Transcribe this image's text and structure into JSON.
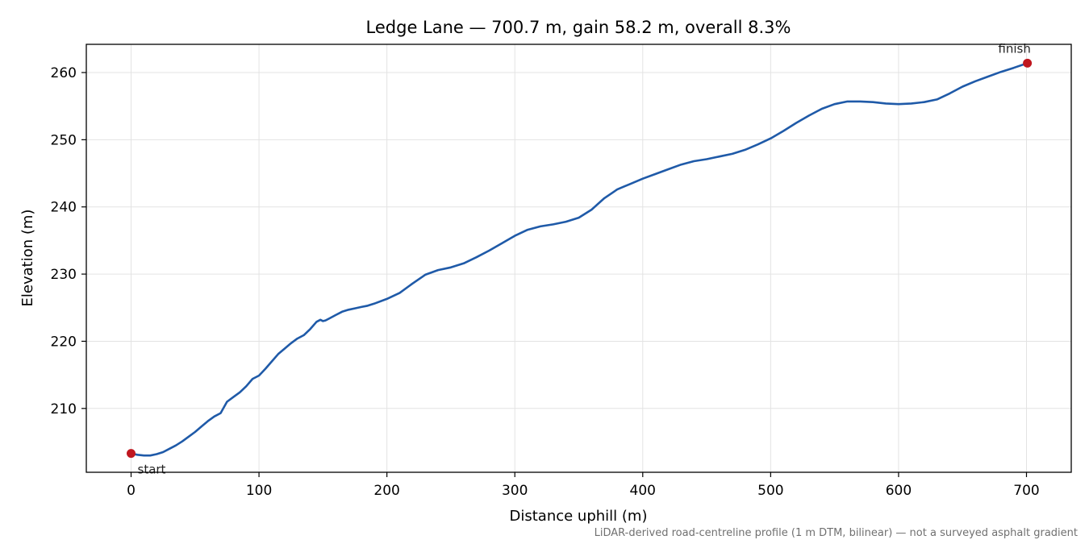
{
  "chart_data": {
    "type": "line",
    "title": "Ledge Lane — 700.7 m, gain 58.2 m, overall 8.3%",
    "xlabel": "Distance uphill (m)",
    "ylabel": "Elevation (m)",
    "caption": "LiDAR-derived road-centreline profile (1 m DTM, bilinear) — not a surveyed asphalt gradient",
    "xlim": [
      -35,
      735
    ],
    "ylim": [
      200.5,
      264.2
    ],
    "xticks": [
      0,
      100,
      200,
      300,
      400,
      500,
      600,
      700
    ],
    "yticks": [
      210,
      220,
      230,
      240,
      250,
      260
    ],
    "grid": true,
    "line_color": "#1f5aa8",
    "marker_color": "#c0171f",
    "series": [
      {
        "x": [
          0,
          5,
          10,
          15,
          20,
          25,
          30,
          35,
          40,
          45,
          50,
          55,
          60,
          65,
          70,
          75,
          80,
          85,
          90,
          95,
          100,
          105,
          110,
          115,
          120,
          125,
          130,
          135,
          140,
          145,
          148,
          150,
          152,
          155,
          160,
          165,
          170,
          175,
          180,
          185,
          190,
          200,
          210,
          220,
          230,
          240,
          250,
          260,
          270,
          280,
          290,
          300,
          310,
          320,
          330,
          340,
          350,
          360,
          370,
          380,
          385,
          390,
          400,
          410,
          420,
          430,
          440,
          450,
          460,
          470,
          480,
          490,
          500,
          510,
          520,
          530,
          540,
          550,
          560,
          570,
          580,
          590,
          600,
          610,
          620,
          630,
          640,
          650,
          660,
          670,
          680,
          690,
          700.7
        ],
        "y": [
          203.3,
          203.1,
          203.0,
          203.0,
          203.2,
          203.5,
          204.0,
          204.5,
          205.1,
          205.8,
          206.5,
          207.3,
          208.1,
          208.8,
          209.3,
          211.0,
          211.7,
          212.4,
          213.3,
          214.4,
          214.9,
          215.9,
          217.0,
          218.1,
          218.9,
          219.7,
          220.4,
          220.9,
          221.8,
          222.9,
          223.2,
          223.0,
          223.1,
          223.4,
          223.9,
          224.4,
          224.7,
          224.9,
          225.1,
          225.3,
          225.6,
          226.3,
          227.2,
          228.6,
          229.9,
          230.6,
          231.0,
          231.6,
          232.5,
          233.5,
          234.6,
          235.7,
          236.6,
          237.1,
          237.4,
          237.8,
          238.4,
          239.6,
          241.3,
          242.6,
          243.0,
          243.4,
          244.2,
          244.9,
          245.6,
          246.3,
          246.8,
          247.1,
          247.5,
          247.9,
          248.5,
          249.3,
          250.2,
          251.3,
          252.5,
          253.6,
          254.6,
          255.3,
          255.7,
          255.7,
          255.6,
          255.4,
          255.3,
          255.4,
          255.6,
          256.0,
          256.9,
          257.9,
          258.7,
          259.4,
          260.1,
          260.7,
          261.4
        ]
      }
    ],
    "annotations": [
      {
        "label": "start",
        "x": 0,
        "y": 203.3
      },
      {
        "label": "finish",
        "x": 700.7,
        "y": 261.4
      }
    ]
  }
}
